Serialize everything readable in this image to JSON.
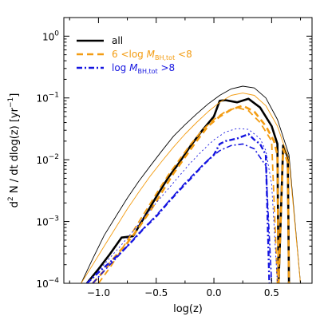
{
  "chart_data": {
    "type": "line",
    "xlabel": "log(z)",
    "ylabel_main": "d",
    "ylabel_sup": "2",
    "ylabel_rest": " N / dt dlog(z) [yr",
    "ylabel_exp": "−1",
    "ylabel_close": "]",
    "xlim": [
      -1.3,
      0.85
    ],
    "ylim": [
      0.0001,
      2
    ],
    "yscale": "log",
    "xticks": [
      -1.0,
      -0.5,
      0.0,
      0.5
    ],
    "xtick_labels": [
      "−1.0",
      "−0.5",
      "0.0",
      "0.5"
    ],
    "yticks": [
      0.0001,
      0.001,
      0.01,
      0.1,
      1
    ],
    "ytick_labels": [
      {
        "base": "10",
        "exp": "−4"
      },
      {
        "base": "10",
        "exp": "−3"
      },
      {
        "base": "10",
        "exp": "−2"
      },
      {
        "base": "10",
        "exp": "−1"
      },
      {
        "base": "10",
        "exp": "0"
      }
    ],
    "legend": {
      "position": "top-left",
      "entries": [
        {
          "text": "all",
          "color": "#000000",
          "style": "solid"
        },
        {
          "pre": "6 <log ",
          "var": "M",
          "sub": "BH,tot",
          "post": " <8",
          "color": "#f39c12",
          "style": "dashed"
        },
        {
          "pre": "log ",
          "var": "M",
          "sub": "BH,tot",
          "post": " >8",
          "color": "#1515e0",
          "style": "dashdot"
        }
      ]
    },
    "series": [
      {
        "key": "all_thin",
        "color": "#000000",
        "width": 0.9,
        "dash": "",
        "x": [
          -1.15,
          -1.05,
          -0.95,
          -0.85,
          -0.75,
          -0.65,
          -0.55,
          -0.45,
          -0.35,
          -0.25,
          -0.15,
          -0.05,
          0.05,
          0.15,
          0.25,
          0.35,
          0.45,
          0.55,
          0.65,
          0.75
        ],
        "y": [
          0.0001,
          0.00025,
          0.0006,
          0.0012,
          0.0024,
          0.0045,
          0.008,
          0.014,
          0.024,
          0.037,
          0.055,
          0.08,
          0.11,
          0.14,
          0.155,
          0.145,
          0.1,
          0.045,
          0.012,
          0.0001
        ]
      },
      {
        "key": "all_thick",
        "color": "#000000",
        "width": 2.6,
        "dash": "",
        "x": [
          -1.1,
          -1.0,
          -0.9,
          -0.8,
          -0.7,
          -0.6,
          -0.5,
          -0.4,
          -0.3,
          -0.2,
          -0.1,
          0.0,
          0.05,
          0.1,
          0.2,
          0.3,
          0.4,
          0.5,
          0.55,
          0.56,
          0.6,
          0.64,
          0.65
        ],
        "y": [
          0.0001,
          0.00017,
          0.0003,
          0.00055,
          0.00058,
          0.0012,
          0.0025,
          0.005,
          0.009,
          0.017,
          0.03,
          0.05,
          0.09,
          0.092,
          0.085,
          0.097,
          0.07,
          0.035,
          0.018,
          0.0001,
          0.017,
          0.011,
          0.0001
        ]
      },
      {
        "key": "mid_thin",
        "color": "#f39c12",
        "width": 0.9,
        "dash": "",
        "x": [
          -1.15,
          -1.05,
          -0.95,
          -0.85,
          -0.75,
          -0.65,
          -0.55,
          -0.45,
          -0.35,
          -0.25,
          -0.15,
          -0.05,
          0.05,
          0.15,
          0.25,
          0.35,
          0.45,
          0.55,
          0.65,
          0.75
        ],
        "y": [
          0.0001,
          0.0002,
          0.0004,
          0.0008,
          0.0016,
          0.003,
          0.0055,
          0.0095,
          0.016,
          0.026,
          0.04,
          0.06,
          0.085,
          0.11,
          0.12,
          0.11,
          0.075,
          0.035,
          0.01,
          0.0001
        ]
      },
      {
        "key": "mid_thick",
        "color": "#f39c12",
        "width": 2.6,
        "dash": "8,5",
        "x": [
          -1.05,
          -0.95,
          -0.85,
          -0.75,
          -0.65,
          -0.55,
          -0.45,
          -0.35,
          -0.25,
          -0.15,
          -0.05,
          0.05,
          0.15,
          0.25,
          0.35,
          0.45,
          0.52,
          0.55,
          0.56,
          0.6,
          0.64,
          0.65
        ],
        "y": [
          0.0001,
          0.00016,
          0.00028,
          0.00045,
          0.0008,
          0.0015,
          0.003,
          0.006,
          0.011,
          0.02,
          0.035,
          0.05,
          0.065,
          0.075,
          0.06,
          0.035,
          0.02,
          0.012,
          0.0001,
          0.015,
          0.009,
          0.0001
        ]
      },
      {
        "key": "mid_thick2",
        "color": "#f39c12",
        "width": 1.8,
        "dash": "8,5",
        "x": [
          -1.0,
          -0.9,
          -0.8,
          -0.7,
          -0.6,
          -0.5,
          -0.4,
          -0.3,
          -0.2,
          -0.1,
          0.0,
          0.1,
          0.2,
          0.3,
          0.4,
          0.5,
          0.55
        ],
        "y": [
          0.0001,
          0.00018,
          0.00035,
          0.0007,
          0.0014,
          0.0028,
          0.0055,
          0.01,
          0.018,
          0.03,
          0.045,
          0.06,
          0.07,
          0.062,
          0.04,
          0.02,
          0.0001
        ]
      },
      {
        "key": "high_thin",
        "color": "#1515e0",
        "width": 0.9,
        "dash": "2,3",
        "x": [
          -1.1,
          -1.0,
          -0.9,
          -0.8,
          -0.7,
          -0.6,
          -0.5,
          -0.4,
          -0.3,
          -0.2,
          -0.1,
          0.0,
          0.1,
          0.2,
          0.3,
          0.4,
          0.45,
          0.5,
          0.55
        ],
        "y": [
          0.0001,
          0.00016,
          0.00026,
          0.00042,
          0.0007,
          0.0012,
          0.002,
          0.0033,
          0.0055,
          0.009,
          0.014,
          0.021,
          0.028,
          0.032,
          0.031,
          0.022,
          0.014,
          0.004,
          0.0001
        ]
      },
      {
        "key": "high_thick",
        "color": "#1515e0",
        "width": 2.4,
        "dash": "7,3,2,3",
        "x": [
          -1.1,
          -1.0,
          -0.9,
          -0.8,
          -0.7,
          -0.6,
          -0.5,
          -0.4,
          -0.3,
          -0.2,
          -0.1,
          0.0,
          0.05,
          0.1,
          0.2,
          0.3,
          0.35,
          0.4,
          0.45,
          0.48,
          0.5
        ],
        "y": [
          0.0001,
          0.00015,
          0.00022,
          0.00032,
          0.0005,
          0.0008,
          0.0012,
          0.002,
          0.0032,
          0.005,
          0.008,
          0.012,
          0.018,
          0.02,
          0.022,
          0.026,
          0.021,
          0.018,
          0.012,
          0.0001,
          0.0001
        ]
      },
      {
        "key": "high_thick2",
        "color": "#1515e0",
        "width": 1.6,
        "dash": "7,3,2,3",
        "x": [
          -1.05,
          -0.95,
          -0.85,
          -0.75,
          -0.65,
          -0.55,
          -0.45,
          -0.35,
          -0.25,
          -0.15,
          -0.05,
          0.05,
          0.15,
          0.25,
          0.35,
          0.45,
          0.5
        ],
        "y": [
          0.0001,
          0.00016,
          0.00025,
          0.0004,
          0.00065,
          0.001,
          0.0016,
          0.0026,
          0.0042,
          0.0065,
          0.01,
          0.014,
          0.017,
          0.018,
          0.015,
          0.008,
          0.0001
        ]
      }
    ]
  }
}
